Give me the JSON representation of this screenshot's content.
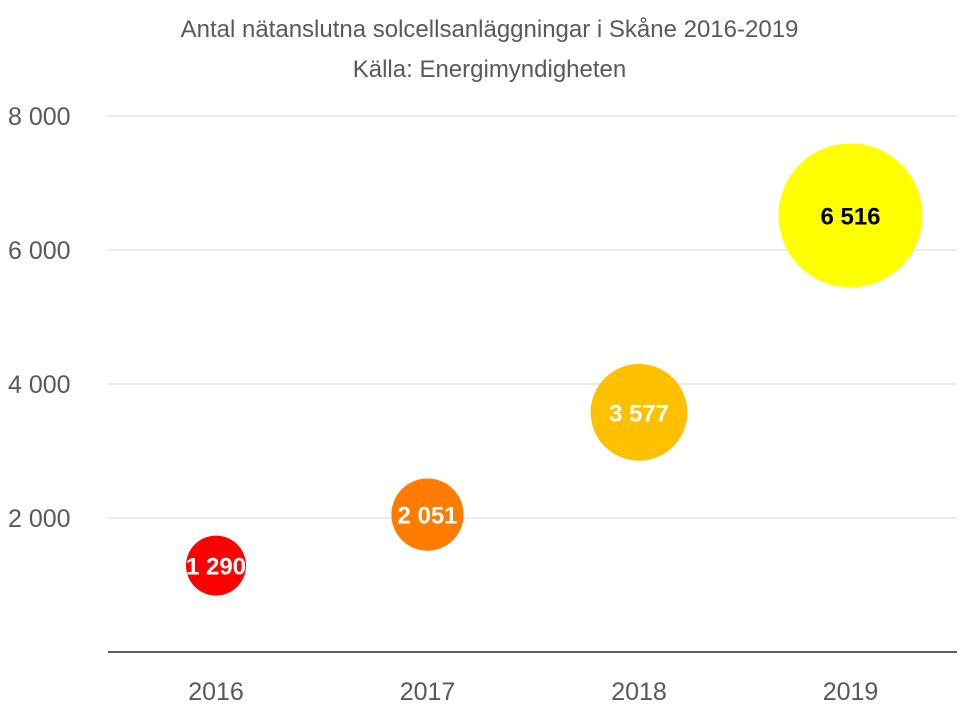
{
  "chart_data": {
    "type": "bubble",
    "title": "Antal nätanslutna solcellsanläggningar i Skåne 2016-2019",
    "subtitle": "Källa: Energimyndigheten",
    "categories": [
      "2016",
      "2017",
      "2018",
      "2019"
    ],
    "values": [
      1290,
      2051,
      3577,
      6516
    ],
    "value_labels": [
      "1 290",
      "2 051",
      "3 577",
      "6 516"
    ],
    "bubble_colors": [
      "#ff0000",
      "#ff7c00",
      "#ffc000",
      "#ffff00"
    ],
    "label_colors": [
      "#ffffff",
      "#ffffff",
      "#ffffff",
      "#000000"
    ],
    "ylim": [
      0,
      8000
    ],
    "yticks": [
      2000,
      4000,
      6000,
      8000
    ],
    "ytick_labels": [
      "2 000",
      "4 000",
      "6 000",
      "8 000"
    ],
    "xlabel": "",
    "ylabel": "",
    "grid": true,
    "legend": "none",
    "colors": {
      "grid": "#d9d9d9",
      "axis": "#000000",
      "text": "#595959"
    }
  }
}
